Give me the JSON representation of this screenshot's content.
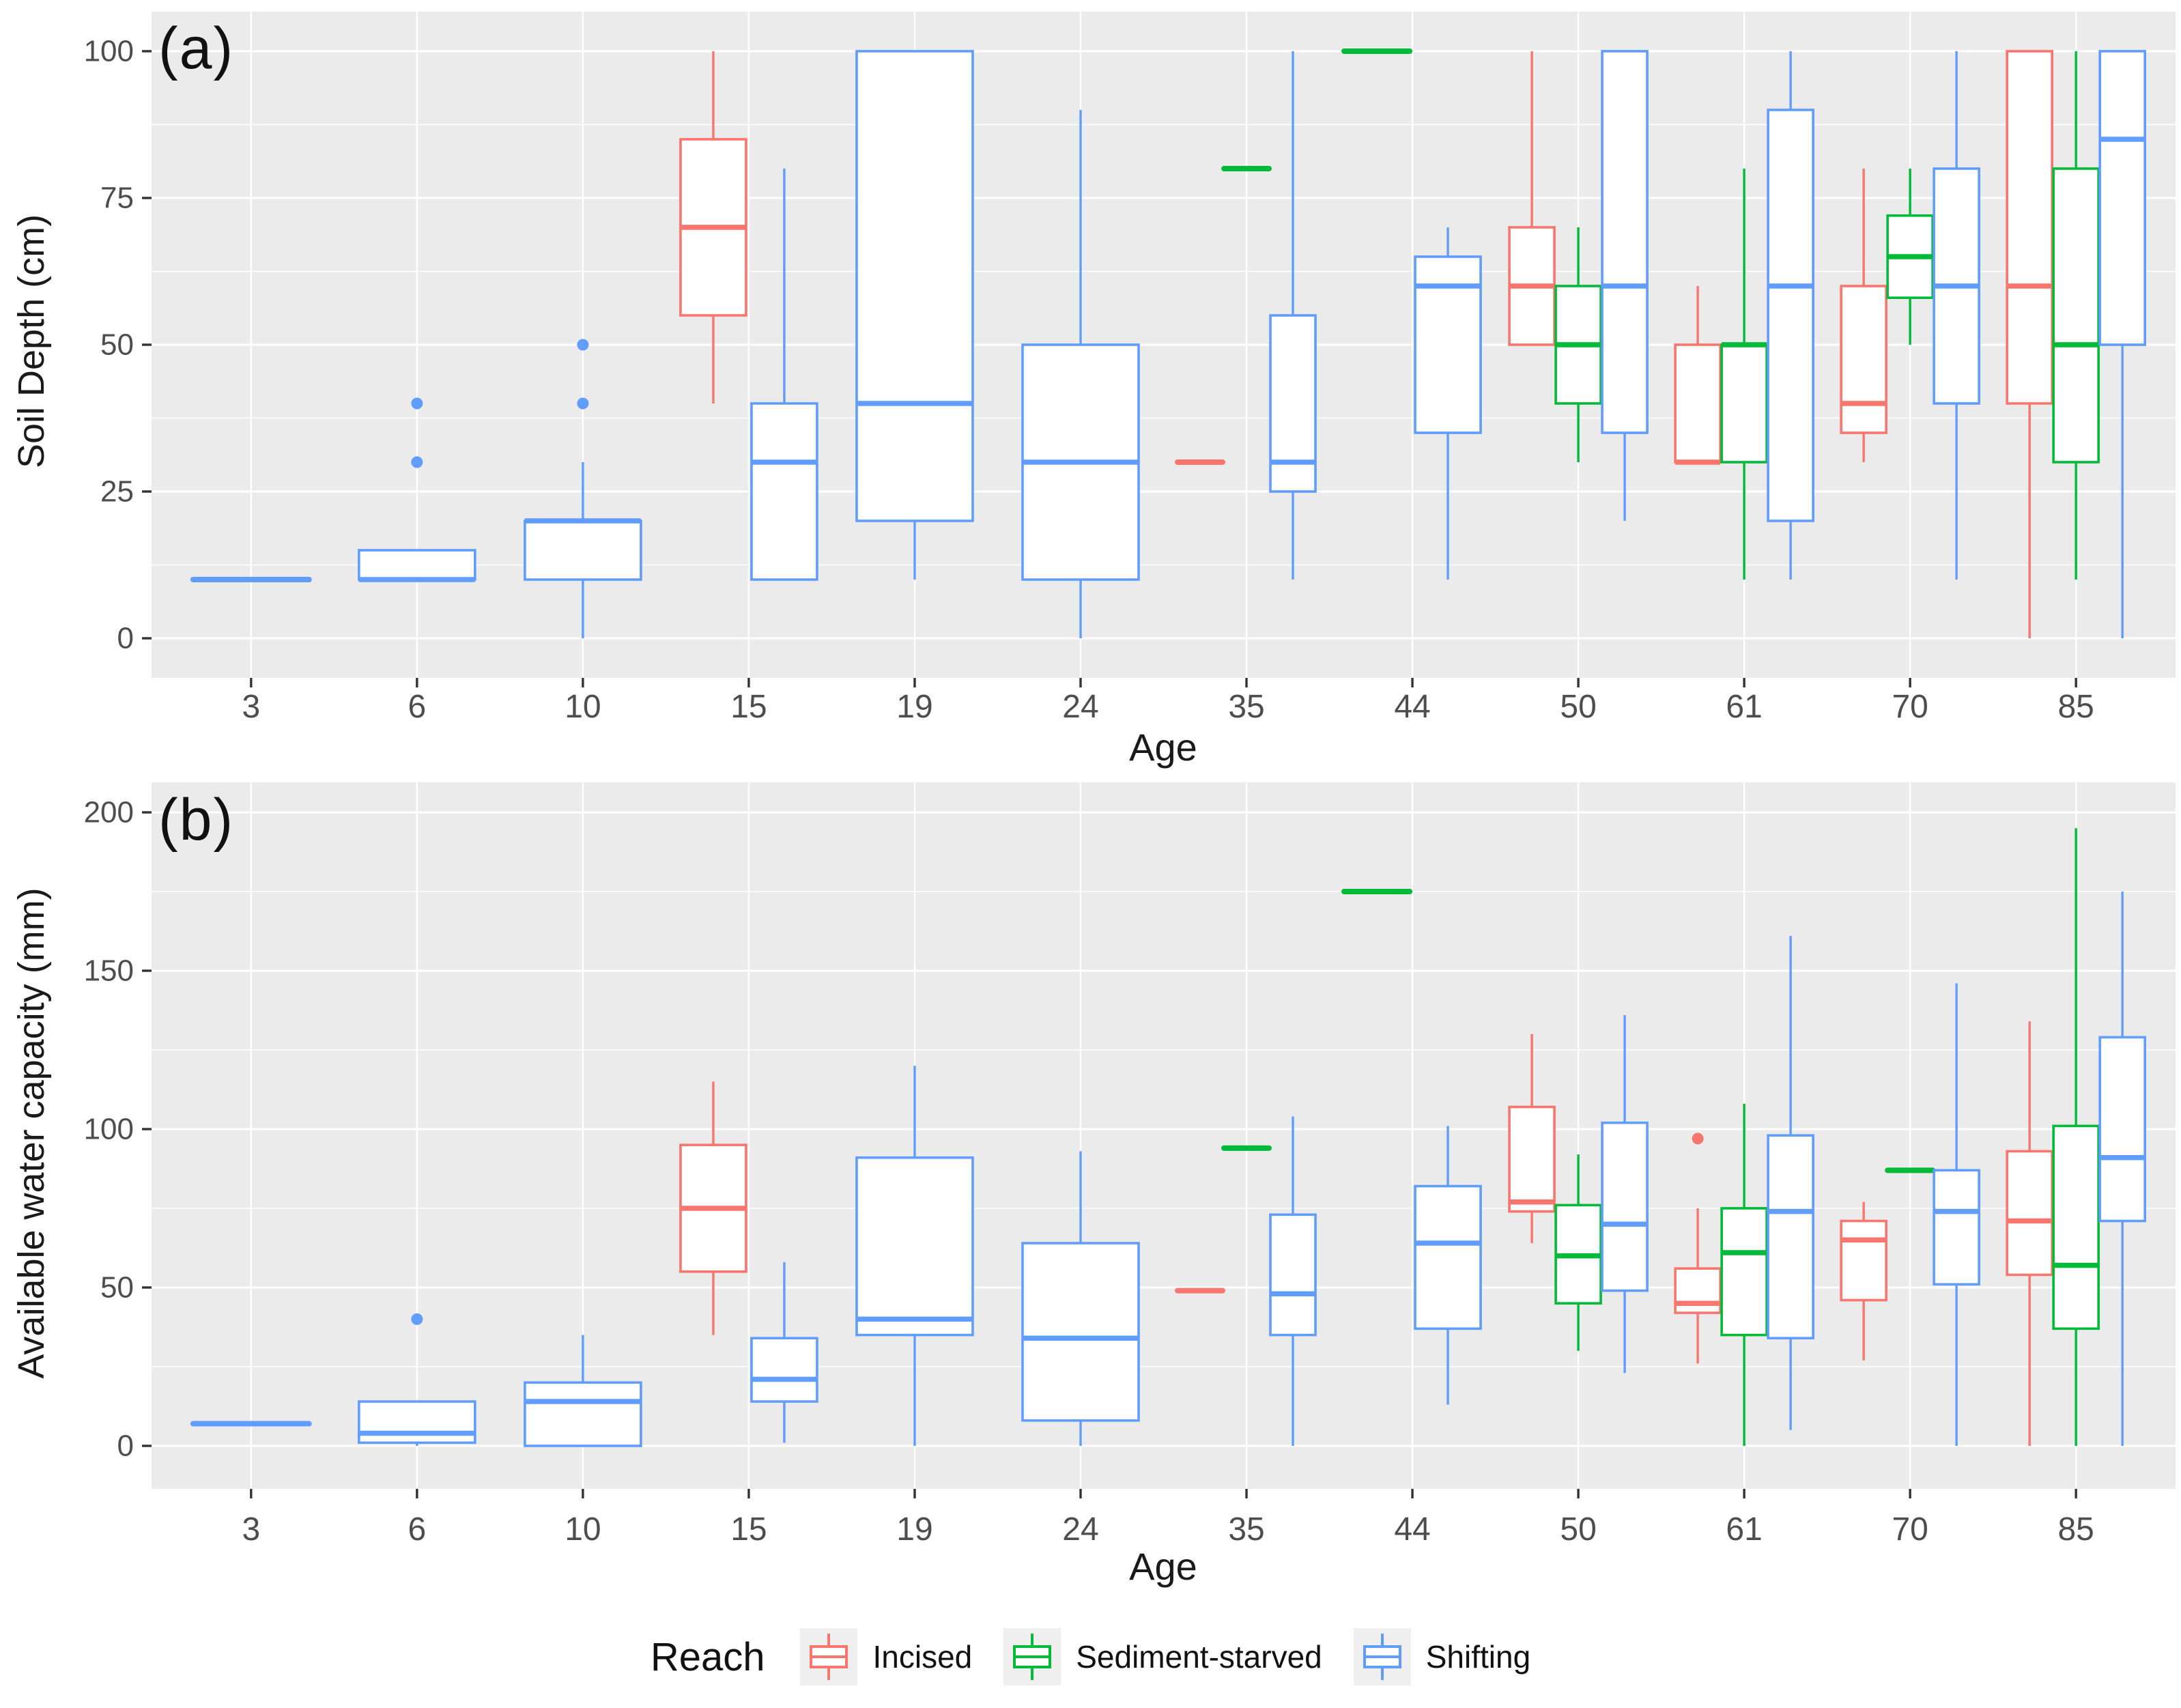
{
  "figure": {
    "panels": [
      {
        "id": "a",
        "label": "(a)",
        "ylabel": "Soil Depth (cm)",
        "xlabel": "Age"
      },
      {
        "id": "b",
        "label": "(b)",
        "ylabel": "Available water capacity (mm)",
        "xlabel": "Age"
      }
    ]
  },
  "legend": {
    "title": "Reach",
    "items": [
      {
        "label": "Incised",
        "color": "#F8766D"
      },
      {
        "label": "Sediment-starved",
        "color": "#00BA38"
      },
      {
        "label": "Shifting",
        "color": "#619CFF"
      }
    ]
  },
  "colors": {
    "panel_background": "#EBEBEB",
    "gridline": "#FFFFFF",
    "tick_mark": "#333333",
    "tick_text": "#4d4d4d",
    "incised": "#F8766D",
    "sediment_starved": "#00BA38",
    "shifting": "#619CFF"
  },
  "chart_data": [
    {
      "type": "boxplot",
      "title": "(a)",
      "xlabel": "Age",
      "ylabel": "Soil Depth (cm)",
      "ylim": [
        0,
        100
      ],
      "yticks": [
        0,
        25,
        50,
        75,
        100
      ],
      "yminor": [
        12.5,
        37.5,
        62.5,
        87.5
      ],
      "grid": "on",
      "categories": [
        3,
        6,
        10,
        15,
        19,
        24,
        35,
        44,
        50,
        61,
        70,
        85
      ],
      "series": [
        {
          "name": "Incised",
          "color": "#F8766D",
          "boxes": [
            null,
            null,
            null,
            {
              "lo": 40,
              "q1": 55,
              "med": 70,
              "q3": 85,
              "hi": 100
            },
            null,
            null,
            {
              "lo": 30,
              "q1": 30,
              "med": 30,
              "q3": 30,
              "hi": 30
            },
            null,
            {
              "lo": 50,
              "q1": 50,
              "med": 60,
              "q3": 70,
              "hi": 100
            },
            {
              "lo": 30,
              "q1": 30,
              "med": 30,
              "q3": 50,
              "hi": 60
            },
            {
              "lo": 30,
              "q1": 35,
              "med": 40,
              "q3": 60,
              "hi": 80
            },
            {
              "lo": 0,
              "q1": 40,
              "med": 60,
              "q3": 100,
              "hi": 100
            }
          ]
        },
        {
          "name": "Sediment-starved",
          "color": "#00BA38",
          "boxes": [
            null,
            null,
            null,
            null,
            null,
            null,
            {
              "lo": 80,
              "q1": 80,
              "med": 80,
              "q3": 80,
              "hi": 80
            },
            {
              "lo": 100,
              "q1": 100,
              "med": 100,
              "q3": 100,
              "hi": 100
            },
            {
              "lo": 30,
              "q1": 40,
              "med": 50,
              "q3": 60,
              "hi": 70
            },
            {
              "lo": 10,
              "q1": 30,
              "med": 50,
              "q3": 50,
              "hi": 80
            },
            {
              "lo": 50,
              "q1": 58,
              "med": 65,
              "q3": 72,
              "hi": 80
            },
            {
              "lo": 10,
              "q1": 30,
              "med": 50,
              "q3": 80,
              "hi": 100
            }
          ]
        },
        {
          "name": "Shifting",
          "color": "#619CFF",
          "boxes": [
            {
              "lo": 10,
              "q1": 10,
              "med": 10,
              "q3": 10,
              "hi": 10
            },
            {
              "lo": 10,
              "q1": 10,
              "med": 10,
              "q3": 15,
              "hi": 15,
              "out": [
                30,
                40
              ]
            },
            {
              "lo": 0,
              "q1": 10,
              "med": 20,
              "q3": 20,
              "hi": 30,
              "out": [
                40,
                50
              ]
            },
            {
              "lo": 10,
              "q1": 10,
              "med": 30,
              "q3": 40,
              "hi": 80
            },
            {
              "lo": 10,
              "q1": 20,
              "med": 40,
              "q3": 100,
              "hi": 100
            },
            {
              "lo": 0,
              "q1": 10,
              "med": 30,
              "q3": 50,
              "hi": 90
            },
            {
              "lo": 10,
              "q1": 25,
              "med": 30,
              "q3": 55,
              "hi": 100
            },
            {
              "lo": 10,
              "q1": 35,
              "med": 60,
              "q3": 65,
              "hi": 70
            },
            {
              "lo": 20,
              "q1": 35,
              "med": 60,
              "q3": 100,
              "hi": 100
            },
            {
              "lo": 10,
              "q1": 20,
              "med": 60,
              "q3": 90,
              "hi": 100
            },
            {
              "lo": 10,
              "q1": 40,
              "med": 60,
              "q3": 80,
              "hi": 100
            },
            {
              "lo": 0,
              "q1": 50,
              "med": 85,
              "q3": 100,
              "hi": 100
            }
          ]
        }
      ]
    },
    {
      "type": "boxplot",
      "title": "(b)",
      "xlabel": "Age",
      "ylabel": "Available water capacity (mm)",
      "ylim": [
        0,
        200
      ],
      "yticks": [
        0,
        50,
        100,
        150,
        200
      ],
      "yminor": [
        25,
        75,
        125,
        175
      ],
      "grid": "on",
      "categories": [
        3,
        6,
        10,
        15,
        19,
        24,
        35,
        44,
        50,
        61,
        70,
        85
      ],
      "series": [
        {
          "name": "Incised",
          "color": "#F8766D",
          "boxes": [
            null,
            null,
            null,
            {
              "lo": 35,
              "q1": 55,
              "med": 75,
              "q3": 95,
              "hi": 115
            },
            null,
            null,
            {
              "lo": 49,
              "q1": 49,
              "med": 49,
              "q3": 49,
              "hi": 49
            },
            null,
            {
              "lo": 64,
              "q1": 74,
              "med": 77,
              "q3": 107,
              "hi": 130
            },
            {
              "lo": 26,
              "q1": 42,
              "med": 45,
              "q3": 56,
              "hi": 75,
              "out": [
                97
              ]
            },
            {
              "lo": 27,
              "q1": 46,
              "med": 65,
              "q3": 71,
              "hi": 77
            },
            {
              "lo": 0,
              "q1": 54,
              "med": 71,
              "q3": 93,
              "hi": 134
            }
          ]
        },
        {
          "name": "Sediment-starved",
          "color": "#00BA38",
          "boxes": [
            null,
            null,
            null,
            null,
            null,
            null,
            {
              "lo": 94,
              "q1": 94,
              "med": 94,
              "q3": 94,
              "hi": 94
            },
            {
              "lo": 175,
              "q1": 175,
              "med": 175,
              "q3": 175,
              "hi": 175
            },
            {
              "lo": 30,
              "q1": 45,
              "med": 60,
              "q3": 76,
              "hi": 92
            },
            {
              "lo": 0,
              "q1": 35,
              "med": 61,
              "q3": 75,
              "hi": 108
            },
            {
              "lo": 87,
              "q1": 87,
              "med": 87,
              "q3": 87,
              "hi": 87
            },
            {
              "lo": 0,
              "q1": 37,
              "med": 57,
              "q3": 101,
              "hi": 195
            }
          ]
        },
        {
          "name": "Shifting",
          "color": "#619CFF",
          "boxes": [
            {
              "lo": 7,
              "q1": 7,
              "med": 7,
              "q3": 7,
              "hi": 7
            },
            {
              "lo": 0,
              "q1": 1,
              "med": 4,
              "q3": 14,
              "hi": 14,
              "out": [
                40
              ]
            },
            {
              "lo": 0,
              "q1": 0,
              "med": 14,
              "q3": 20,
              "hi": 35
            },
            {
              "lo": 1,
              "q1": 14,
              "med": 21,
              "q3": 34,
              "hi": 58
            },
            {
              "lo": 0,
              "q1": 35,
              "med": 40,
              "q3": 91,
              "hi": 120
            },
            {
              "lo": 0,
              "q1": 8,
              "med": 34,
              "q3": 64,
              "hi": 93
            },
            {
              "lo": 0,
              "q1": 35,
              "med": 48,
              "q3": 73,
              "hi": 104
            },
            {
              "lo": 13,
              "q1": 37,
              "med": 64,
              "q3": 82,
              "hi": 101
            },
            {
              "lo": 23,
              "q1": 49,
              "med": 70,
              "q3": 102,
              "hi": 136
            },
            {
              "lo": 5,
              "q1": 34,
              "med": 74,
              "q3": 98,
              "hi": 161
            },
            {
              "lo": 0,
              "q1": 51,
              "med": 74,
              "q3": 87,
              "hi": 146
            },
            {
              "lo": 0,
              "q1": 71,
              "med": 91,
              "q3": 129,
              "hi": 175
            }
          ]
        }
      ]
    }
  ]
}
